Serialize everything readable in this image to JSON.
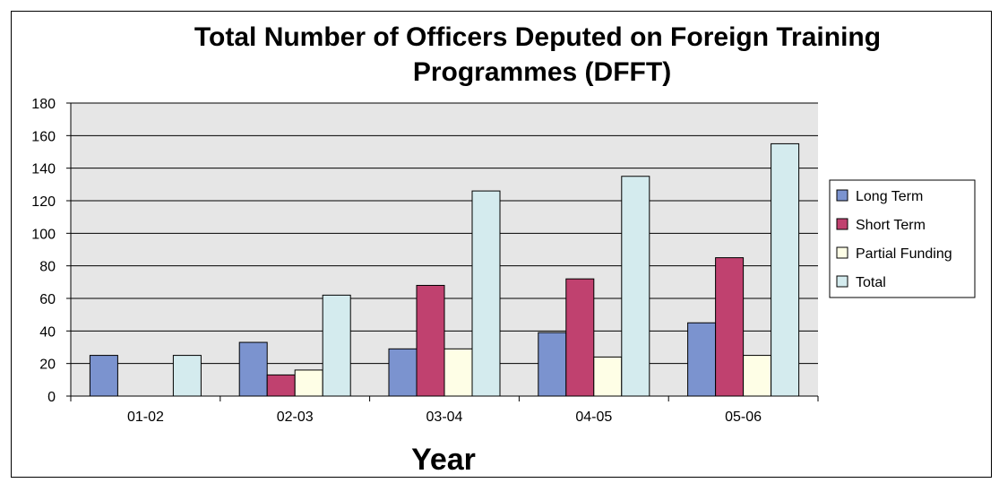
{
  "chart_data": {
    "type": "bar",
    "title_line1": "Total Number of Officers Deputed on Foreign Training",
    "title_line2": "Programmes (DFFT)",
    "xlabel": "Year",
    "ylabel": "",
    "categories": [
      "01-02",
      "02-03",
      "03-04",
      "04-05",
      "05-06"
    ],
    "ylim": [
      0,
      180
    ],
    "yticks": [
      0,
      20,
      40,
      60,
      80,
      100,
      120,
      140,
      160,
      180
    ],
    "grid": true,
    "legend_position": "right",
    "series": [
      {
        "name": "Long Term",
        "color": "#7b93cf",
        "values": [
          25,
          33,
          29,
          39,
          45
        ]
      },
      {
        "name": "Short Term",
        "color": "#c0416f",
        "values": [
          null,
          13,
          68,
          72,
          85
        ]
      },
      {
        "name": "Partial Funding",
        "color": "#fefee6",
        "values": [
          null,
          16,
          29,
          24,
          25
        ]
      },
      {
        "name": "Total",
        "color": "#d4ebee",
        "values": [
          25,
          62,
          126,
          135,
          155
        ]
      }
    ]
  },
  "colors": {
    "plot_background": "#e6e6e6",
    "gridline": "#000000"
  }
}
